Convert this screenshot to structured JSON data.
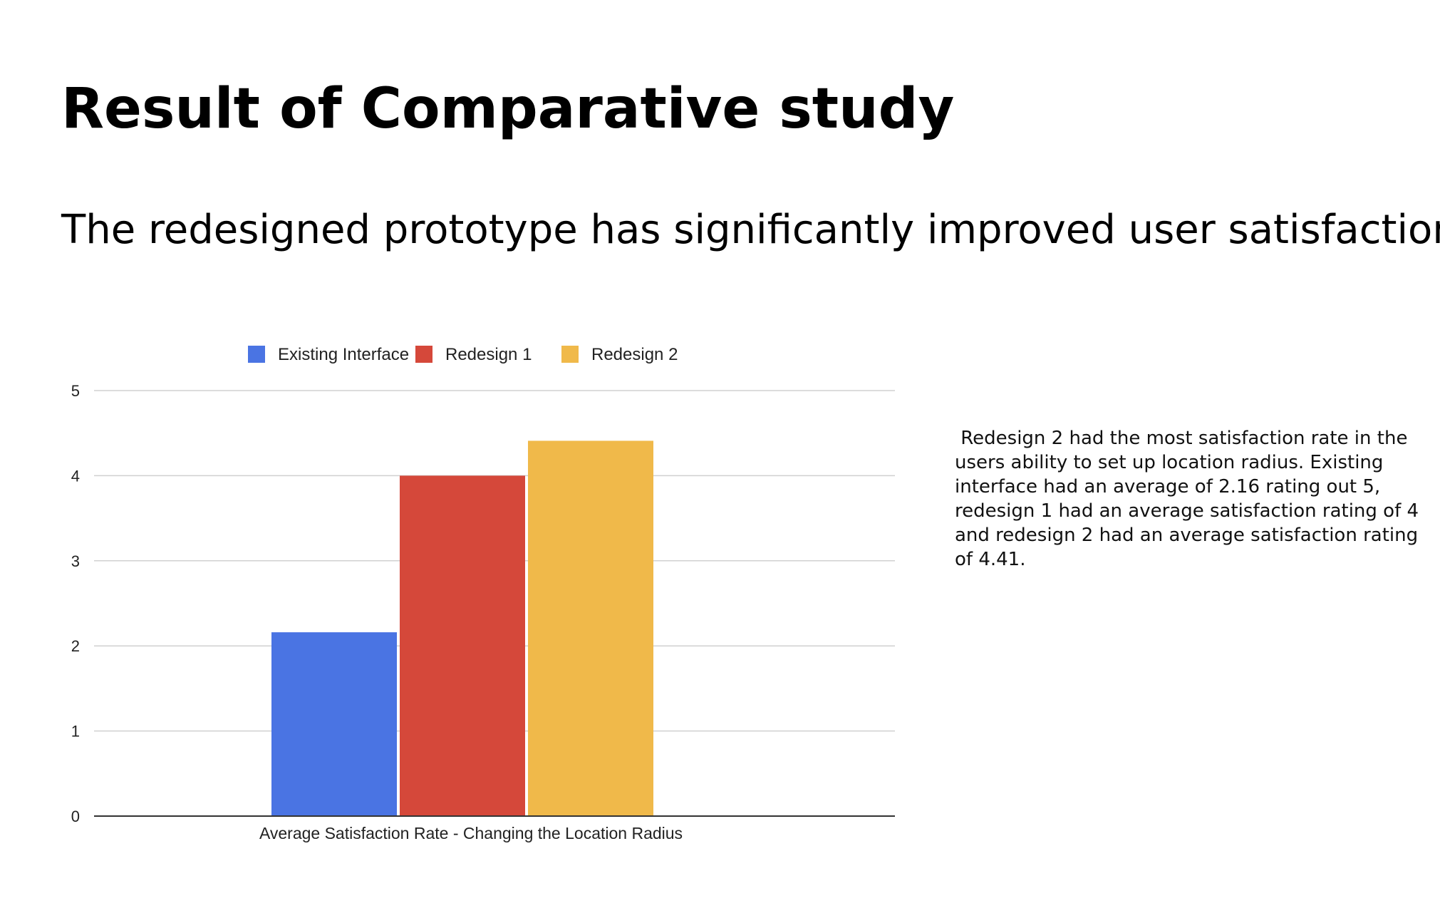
{
  "page": {
    "title": "Result of Comparative study",
    "subtitle": "The redesigned prototype has significantly improved user satisfaction",
    "description": " Redesign 2 had the most satisfaction rate in the users ability to set up location radius. Existing interface had an average of 2.16 rating out 5, redesign 1 had an average satisfaction rating of 4 and redesign 2 had an average satisfaction rating of 4.41."
  },
  "chart_data": {
    "type": "bar",
    "title": "",
    "categories": [
      "Average Satisfaction Rate - Changing the Location Radius"
    ],
    "series": [
      {
        "name": "Existing Interface",
        "values": [
          2.16
        ],
        "color": "#4a74e3"
      },
      {
        "name": "Redesign 1",
        "values": [
          4
        ],
        "color": "#d5483a"
      },
      {
        "name": "Redesign 2",
        "values": [
          4.41
        ],
        "color": "#f0b94a"
      }
    ],
    "xlabel": "Average Satisfaction Rate - Changing the Location Radius",
    "ylabel": "",
    "ylim": [
      0,
      5
    ],
    "yticks": [
      "0",
      "1",
      "2",
      "3",
      "4",
      "5"
    ],
    "grid": true,
    "legend_position": "top-center"
  }
}
